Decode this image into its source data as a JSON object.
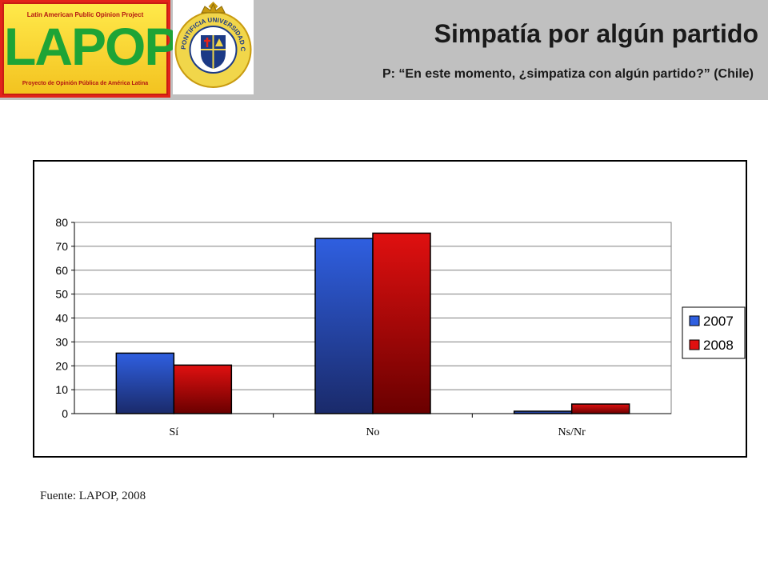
{
  "header": {
    "title": "Simpatía por algún partido",
    "subtitle": "P: “En este momento, ¿simpatiza con algún partido?” (Chile)",
    "logo": {
      "top": "Latin American Public Opinion Project",
      "word": "LAPOP",
      "bottom": "Proyecto de Opinión Pública de América Latina"
    },
    "seal_text": "PONTIFICIA UNIVERSIDAD CATÓLICA DE CHILE"
  },
  "chart_data": {
    "type": "bar",
    "categories": [
      "Sí",
      "No",
      "Ns/Nr"
    ],
    "series": [
      {
        "name": "2007",
        "values": [
          25.3,
          73.3,
          1.0
        ],
        "color": "#2f5fe0",
        "color_dark": "#1a2a6a"
      },
      {
        "name": "2008",
        "values": [
          20.3,
          75.5,
          4.0
        ],
        "color": "#e01010",
        "color_dark": "#6a0000"
      }
    ],
    "yticks": [
      0,
      10,
      20,
      30,
      40,
      50,
      60,
      70,
      80
    ],
    "ylim": [
      0,
      80
    ],
    "grid": true,
    "legend_position": "right"
  },
  "footer": {
    "source": "Fuente: LAPOP, 2008"
  }
}
